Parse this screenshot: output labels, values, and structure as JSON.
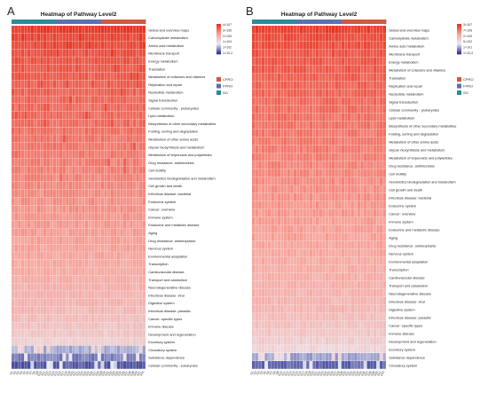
{
  "panels": [
    {
      "letter": "A",
      "title": "Heatmap of Pathway Level2",
      "rows": [
        "Global and overview maps",
        "Carbohydrate metabolism",
        "Amino acid metabolism",
        "Membrane transport",
        "Energy metabolism",
        "Translation",
        "Metabolism of cofactors and vitamins",
        "Replication and repair",
        "Nucleotide metabolism",
        "Signal transduction",
        "Cellular community - prokaryotes",
        "Lipid metabolism",
        "Biosynthesis of other secondary metabolites",
        "Folding, sorting and degradation",
        "Metabolism of other amino acids",
        "Glycan biosynthesis and metabolism",
        "Metabolism of terpenoids and polyketides",
        "Drug resistance: antimicrobial",
        "Cell motility",
        "Xenobiotics biodegradation and metabolism",
        "Cell growth and death",
        "Infectious disease: bacterial",
        "Endocrine system",
        "Cancer: overview",
        "Immune system",
        "Endocrine and metabolic disease",
        "Aging",
        "Drug resistance: antineoplastic",
        "Nervous system",
        "Environmental adaptation",
        "Transcription",
        "Cardiovascular disease",
        "Transport and catabolism",
        "Neurodegenerative disease",
        "Infectious disease: viral",
        "Digestive system",
        "Infectious disease: parasitic",
        "Cancer: specific types",
        "Immune disease",
        "Development and regeneration",
        "Excretory system",
        "Circulatory system",
        "Substance dependence",
        "Cellular community - eukaryotes"
      ],
      "legend_scale": [
        "4×10^7",
        "3×10^6",
        "2×10^5",
        "1×10^4",
        "1×10^2",
        "1×10^-2"
      ],
      "group_legend": [
        {
          "label": "CPRO",
          "color": "#d2583f"
        },
        {
          "label": "FPRO",
          "color": "#5b70b2"
        },
        {
          "label": "SO",
          "color": "#2a8a9a"
        }
      ],
      "columns": [
        "S1",
        "S2",
        "S3",
        "S4",
        "S5",
        "S6",
        "S7",
        "S8",
        "S9",
        "S10",
        "S11",
        "S12",
        "S13",
        "S14",
        "S15",
        "S16",
        "S17",
        "S18",
        "S19",
        "S20",
        "S21",
        "S22",
        "S23",
        "S24",
        "S25",
        "S26",
        "S27",
        "S28",
        "S29",
        "S30",
        "S31",
        "S32",
        "S33",
        "S34",
        "S35",
        "S36",
        "S37",
        "S38",
        "S39",
        "S40",
        "S41",
        "S42"
      ],
      "column_groups": [
        "SO",
        "SO",
        "SO",
        "SO",
        "SO",
        "SO",
        "SO",
        "SO",
        "SO",
        "SO",
        "SO",
        "SO",
        "SO",
        "SO",
        "FPRO",
        "FPRO",
        "FPRO",
        "FPRO",
        "FPRO",
        "FPRO",
        "FPRO",
        "FPRO",
        "FPRO",
        "FPRO",
        "FPRO",
        "FPRO",
        "FPRO",
        "FPRO",
        "CPRO",
        "CPRO",
        "CPRO",
        "CPRO",
        "CPRO",
        "CPRO",
        "CPRO",
        "CPRO",
        "CPRO",
        "CPRO",
        "CPRO",
        "CPRO",
        "CPRO",
        "CPRO"
      ]
    },
    {
      "letter": "B",
      "title": "Heatmap of Pathway Level2",
      "rows": [
        "Global and overview maps",
        "Carbohydrate metabolism",
        "Amino acid metabolism",
        "Membrane transport",
        "Energy metabolism",
        "Metabolism of cofactors and vitamins",
        "Translation",
        "Replication and repair",
        "Nucleotide metabolism",
        "Signal transduction",
        "Cellular community - prokaryotes",
        "Lipid metabolism",
        "Biosynthesis of other secondary metabolites",
        "Folding, sorting and degradation",
        "Metabolism of other amino acids",
        "Glycan biosynthesis and metabolism",
        "Metabolism of terpenoids and polyketides",
        "Drug resistance: antimicrobial",
        "Cell motility",
        "Xenobiotics biodegradation and metabolism",
        "Cell growth and death",
        "Infectious disease: bacterial",
        "Endocrine system",
        "Cancer: overview",
        "Immune system",
        "Endocrine and metabolic disease",
        "Aging",
        "Drug resistance: antineoplastic",
        "Nervous system",
        "Environmental adaptation",
        "Transcription",
        "Cardiovascular disease",
        "Transport and catabolism",
        "Neurodegenerative disease",
        "Infectious disease: viral",
        "Digestive system",
        "Infectious disease: parasitic",
        "Cancer: specific types",
        "Immune disease",
        "Development and regeneration",
        "Excretory system",
        "Substance dependence",
        "Circulatory system"
      ],
      "legend_scale": [
        "3×10^7",
        "7×10^6",
        "2×10^5",
        "5×10^2",
        "1×10^1",
        "1×10^-2"
      ],
      "group_legend": [
        {
          "label": "CPRO",
          "color": "#d2583f"
        },
        {
          "label": "FPRO",
          "color": "#5b70b2"
        },
        {
          "label": "SO",
          "color": "#2a8a9a"
        }
      ],
      "columns": [
        "S1",
        "S2",
        "S3",
        "S4",
        "S5",
        "S6",
        "S7",
        "S8",
        "S9",
        "S10",
        "S11",
        "S12",
        "S13",
        "S14",
        "S15",
        "S16",
        "S17",
        "S18",
        "S19",
        "S20",
        "S21",
        "S22",
        "S23",
        "S24",
        "S25",
        "S26",
        "S27",
        "S28",
        "S29",
        "S30",
        "S31",
        "S32",
        "S33",
        "S34",
        "S35",
        "S36",
        "S37",
        "S38",
        "S39",
        "S40",
        "S41",
        "S42"
      ],
      "column_groups": [
        "SO",
        "SO",
        "SO",
        "SO",
        "SO",
        "SO",
        "SO",
        "SO",
        "SO",
        "SO",
        "SO",
        "SO",
        "SO",
        "SO",
        "FPRO",
        "FPRO",
        "FPRO",
        "FPRO",
        "FPRO",
        "FPRO",
        "FPRO",
        "FPRO",
        "FPRO",
        "FPRO",
        "FPRO",
        "FPRO",
        "FPRO",
        "FPRO",
        "CPRO",
        "CPRO",
        "CPRO",
        "CPRO",
        "CPRO",
        "CPRO",
        "CPRO",
        "CPRO",
        "CPRO",
        "CPRO",
        "CPRO",
        "CPRO",
        "CPRO",
        "CPRO"
      ]
    }
  ],
  "chart_data": [
    {
      "type": "heatmap",
      "title": "Heatmap of Pathway Level2",
      "value_scale": "log10 relative abundance (row-ordered, high to low)",
      "row_mean_log10": [
        7.6,
        7.2,
        7.1,
        6.9,
        6.8,
        6.7,
        6.6,
        6.5,
        6.4,
        6.3,
        6.2,
        6.2,
        6.1,
        6.0,
        5.9,
        5.8,
        5.7,
        5.6,
        5.5,
        5.4,
        5.3,
        5.2,
        5.1,
        5.0,
        4.9,
        4.8,
        4.7,
        4.6,
        4.5,
        4.4,
        4.3,
        4.2,
        4.1,
        4.0,
        3.9,
        3.8,
        3.6,
        3.4,
        3.2,
        3.0,
        2.6,
        0.2,
        -0.6,
        -1.2
      ],
      "colors": [
        "#2b2f8f",
        "#e9ecf7",
        "#f7a39a",
        "#e8321f"
      ]
    },
    {
      "type": "heatmap",
      "title": "Heatmap of Pathway Level2",
      "value_scale": "log10 relative abundance (row-ordered, high to low)",
      "row_mean_log10": [
        7.4,
        7.0,
        6.9,
        6.8,
        6.7,
        6.6,
        6.5,
        6.4,
        6.3,
        6.2,
        6.1,
        6.0,
        5.9,
        5.8,
        5.7,
        5.6,
        5.5,
        5.4,
        5.3,
        5.2,
        5.1,
        5.0,
        4.9,
        4.8,
        4.7,
        4.6,
        4.5,
        4.4,
        4.3,
        4.2,
        4.1,
        4.0,
        3.9,
        3.8,
        3.7,
        3.6,
        3.4,
        3.2,
        3.0,
        2.7,
        2.3,
        0.0,
        -1.0
      ],
      "colors": [
        "#2b2f8f",
        "#e9ecf7",
        "#f7a39a",
        "#e8321f"
      ]
    }
  ]
}
